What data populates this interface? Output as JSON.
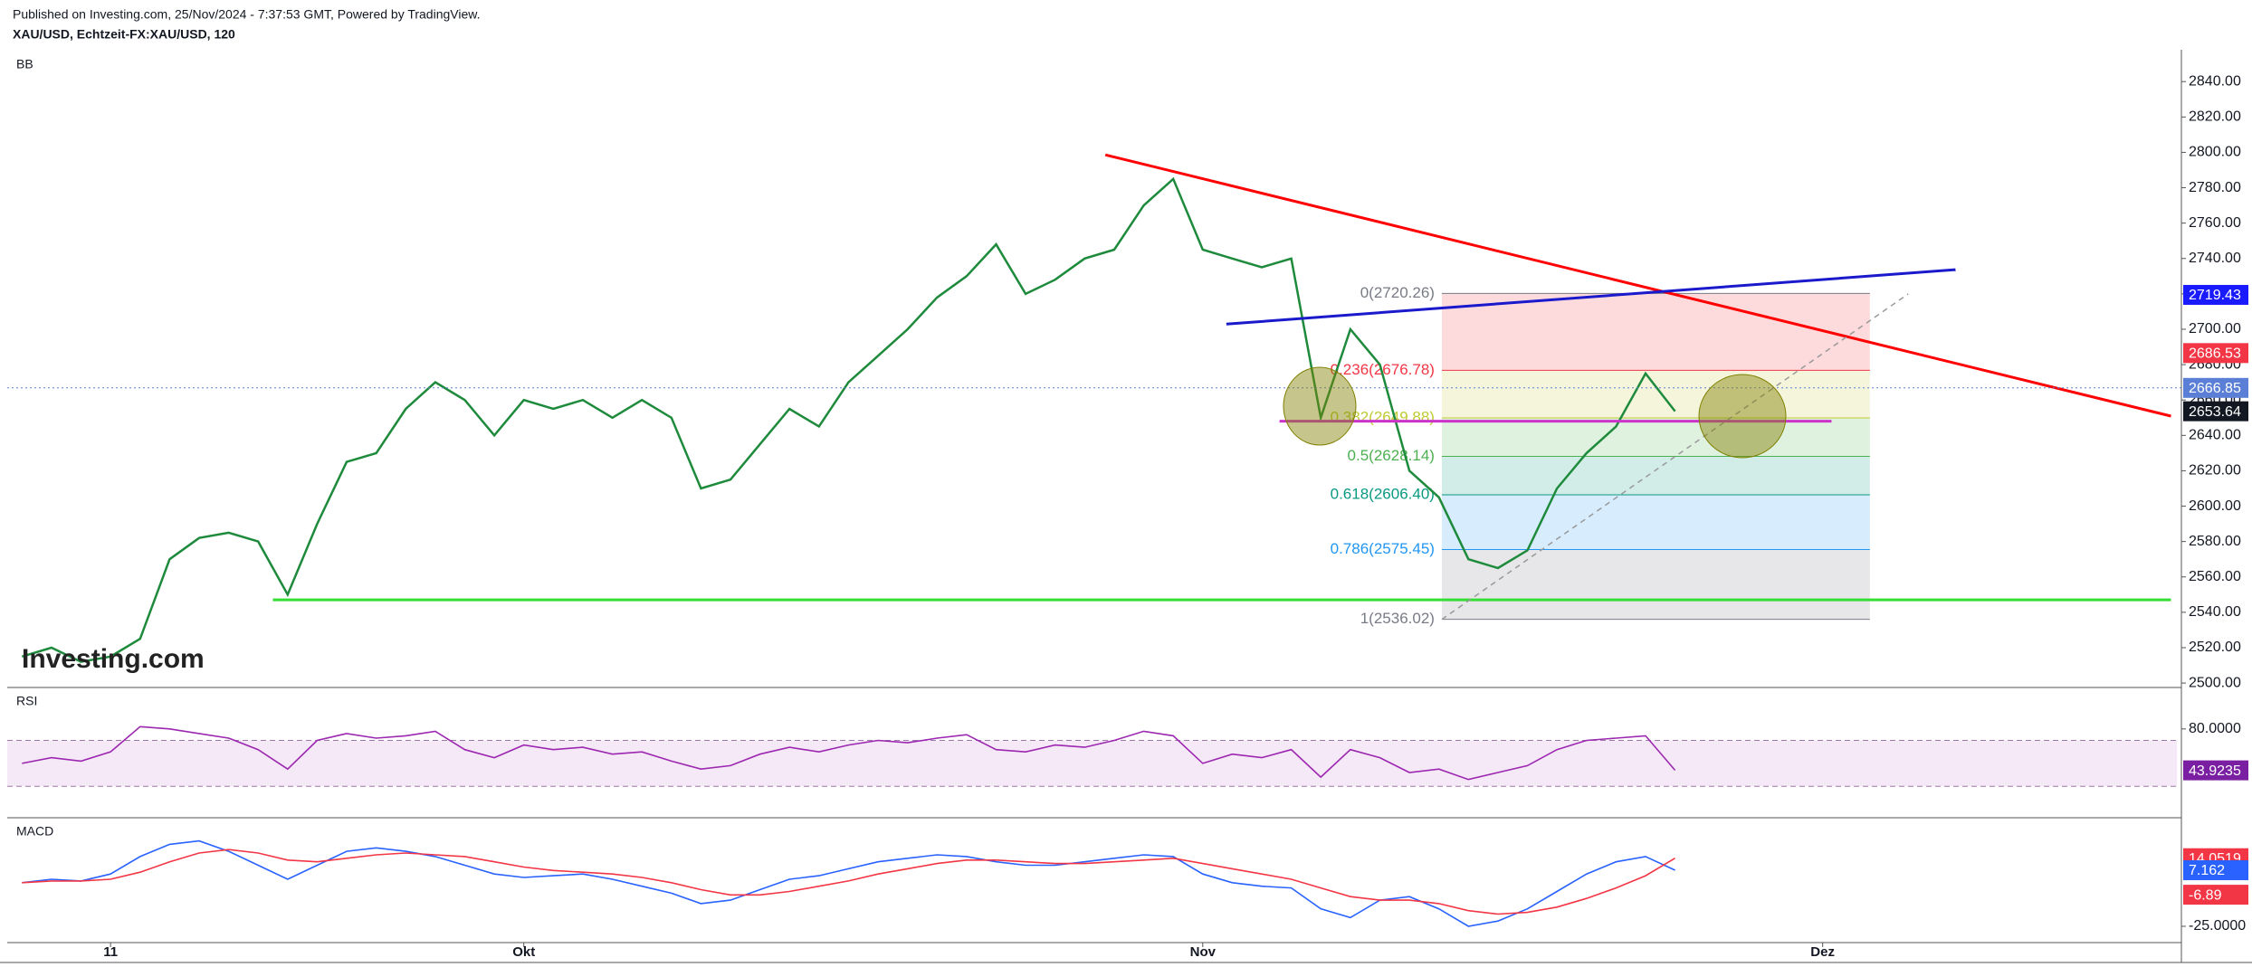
{
  "chart_data": [
    {
      "type": "line",
      "title": "XAU/USD, Echtzeit-FX:XAU/USD, 120",
      "subtitle": "Published on Investing.com, 25/Nov/2024 - 7:37:53 GMT, Powered by TradingView.",
      "indicator": "BB",
      "watermark": "Investing.com",
      "xlim": [
        -3.5,
        70
      ],
      "ylim": [
        2498,
        2858
      ],
      "yticks": [
        {
          "value": 2500,
          "label": "2500.00"
        },
        {
          "value": 2520,
          "label": "2520.00"
        },
        {
          "value": 2540,
          "label": "2540.00"
        },
        {
          "value": 2560,
          "label": "2560.00"
        },
        {
          "value": 2580,
          "label": "2580.00"
        },
        {
          "value": 2600,
          "label": "2600.00"
        },
        {
          "value": 2620,
          "label": "2620.00"
        },
        {
          "value": 2640,
          "label": "2640.00"
        },
        {
          "value": 2660,
          "label": "2660.00"
        },
        {
          "value": 2680,
          "label": "2680.00"
        },
        {
          "value": 2700,
          "label": "2700.00"
        },
        {
          "value": 2720,
          "label": "2720.00"
        },
        {
          "value": 2740,
          "label": "2740.00"
        },
        {
          "value": 2760,
          "label": "2760.00"
        },
        {
          "value": 2780,
          "label": "2780.00"
        },
        {
          "value": 2800,
          "label": "2800.00"
        },
        {
          "value": 2820,
          "label": "2820.00"
        },
        {
          "value": 2840,
          "label": "2840.00"
        }
      ],
      "x": [
        -3,
        -2,
        -1,
        0,
        1,
        2,
        3,
        4,
        5,
        6,
        7,
        8,
        9,
        10,
        11,
        12,
        13,
        14,
        15,
        16,
        17,
        18,
        19,
        20,
        21,
        22,
        23,
        24,
        25,
        26,
        27,
        28,
        29,
        30,
        31,
        32,
        33,
        34,
        35,
        36,
        37,
        38,
        39,
        40,
        41,
        42,
        43,
        44,
        45,
        46,
        47,
        48,
        49,
        50,
        51,
        52,
        53
      ],
      "series": [
        {
          "color": "#1e8a3c",
          "values": [
            2515,
            2520,
            2512,
            2515,
            2525,
            2570,
            2582,
            2585,
            2580,
            2550,
            2590,
            2625,
            2630,
            2655,
            2670,
            2660,
            2640,
            2660,
            2655,
            2660,
            2650,
            2660,
            2650,
            2610,
            2615,
            2635,
            2655,
            2645,
            2670,
            2685,
            2700,
            2718,
            2730,
            2748,
            2720,
            2728,
            2740,
            2745,
            2770,
            2785,
            2745,
            2740,
            2735,
            2740,
            2650,
            2700,
            2680,
            2620,
            2605,
            2570,
            2565,
            2575,
            2610,
            2630,
            2645,
            2675,
            2653.64
          ]
        }
      ],
      "fib_x": [
        45.1,
        59.6
      ],
      "fib_levels": [
        {
          "value": 2720.26,
          "label": "0(2720.26)"
        },
        {
          "value": 2676.78,
          "label": "0.236(2676.78)"
        },
        {
          "value": 2649.88,
          "label": "0.382(2649.88)"
        },
        {
          "value": 2628.14,
          "label": "0.5(2628.14)"
        },
        {
          "value": 2606.4,
          "label": "0.618(2606.40)"
        },
        {
          "value": 2575.45,
          "label": "0.786(2575.45)"
        },
        {
          "value": 2536.02,
          "label": "1(2536.02)"
        }
      ],
      "fib_colors": [
        "#787b86",
        "#f23645",
        "#c0ca33",
        "#4caf50",
        "#089981",
        "#2196f3",
        "#787b86"
      ],
      "lines": [
        {
          "x": [
            33.7,
            69.8
          ],
          "y": [
            2798.6,
            2650.9
          ],
          "color": "#ff0000"
        },
        {
          "x": [
            37.8,
            62.5
          ],
          "y": [
            2702.9,
            2733.7
          ],
          "color": "#1a1acc"
        },
        {
          "x": [
            5.5,
            69.8
          ],
          "y": [
            2547,
            2547
          ],
          "color": "#33dd33"
        },
        {
          "x": [
            39.6,
            58.3
          ],
          "y": [
            2648,
            2648
          ],
          "color": "#cc33cc"
        },
        {
          "x": [
            45.1,
            60.9
          ],
          "y": [
            2536,
            2720
          ],
          "color": "#999999",
          "dashed": true
        }
      ],
      "last_price": 2666.85,
      "tags": [
        {
          "value": 2719.43,
          "color": "#1a1aff"
        },
        {
          "value": 2686.53,
          "color": "#f23645"
        },
        {
          "value": 2666.85,
          "color": "#5b7fd6"
        },
        {
          "value": 2653.64,
          "color": "#131722"
        }
      ]
    },
    {
      "type": "line",
      "title": "RSI",
      "xlim": [
        -3.5,
        70
      ],
      "ylim": [
        5,
        113.75
      ],
      "bands": [
        30,
        70
      ],
      "yticks": [
        {
          "value": 80,
          "label": "80.0000"
        }
      ],
      "x": [
        -3,
        -2,
        -1,
        0,
        1,
        2,
        3,
        4,
        5,
        6,
        7,
        8,
        9,
        10,
        11,
        12,
        13,
        14,
        15,
        16,
        17,
        18,
        19,
        20,
        21,
        22,
        23,
        24,
        25,
        26,
        27,
        28,
        29,
        30,
        31,
        32,
        33,
        34,
        35,
        36,
        37,
        38,
        39,
        40,
        41,
        42,
        43,
        44,
        45,
        46,
        47,
        48,
        49,
        50,
        51,
        52,
        53
      ],
      "series": [
        {
          "color": "#9c27b0",
          "values": [
            50,
            55,
            52,
            60,
            82,
            80,
            76,
            72,
            62,
            45,
            70,
            76,
            72,
            74,
            78,
            62,
            55,
            66,
            62,
            64,
            58,
            60,
            52,
            45,
            48,
            58,
            64,
            60,
            66,
            70,
            68,
            72,
            75,
            62,
            60,
            66,
            64,
            70,
            78,
            74,
            50,
            58,
            55,
            62,
            38,
            62,
            55,
            42,
            45,
            36,
            42,
            48,
            62,
            70,
            72,
            74,
            44
          ]
        }
      ],
      "tags": [
        {
          "value": 43.9235,
          "color": "#7b1fa2"
        }
      ]
    },
    {
      "type": "line",
      "title": "MACD",
      "xlim": [
        -3.5,
        70
      ],
      "ylim": [
        -33.3,
        35.7
      ],
      "yticks": [
        {
          "value": -25,
          "label": "-25.0000"
        }
      ],
      "xticks": [
        {
          "value": 0,
          "label": "11"
        },
        {
          "value": 14,
          "label": "Okt"
        },
        {
          "value": 37,
          "label": "Nov"
        },
        {
          "value": 58,
          "label": "Dez"
        }
      ],
      "x": [
        -3,
        -2,
        -1,
        0,
        1,
        2,
        3,
        4,
        5,
        6,
        7,
        8,
        9,
        10,
        11,
        12,
        13,
        14,
        15,
        16,
        17,
        18,
        19,
        20,
        21,
        22,
        23,
        24,
        25,
        26,
        27,
        28,
        29,
        30,
        31,
        32,
        33,
        34,
        35,
        36,
        37,
        38,
        39,
        40,
        41,
        42,
        43,
        44,
        45,
        46,
        47,
        48,
        49,
        50,
        51,
        52,
        53
      ],
      "series": [
        {
          "color": "#2962ff",
          "values": [
            0,
            2,
            1,
            5,
            15,
            22,
            24,
            18,
            10,
            2,
            10,
            18,
            20,
            18,
            15,
            10,
            5,
            3,
            4,
            5,
            2,
            -2,
            -6,
            -12,
            -10,
            -4,
            2,
            4,
            8,
            12,
            14,
            16,
            15,
            12,
            10,
            10,
            12,
            14,
            16,
            15,
            5,
            0,
            -2,
            -3,
            -15,
            -20,
            -10,
            -8,
            -15,
            -25,
            -22,
            -15,
            -5,
            5,
            12,
            15,
            7.162
          ]
        },
        {
          "color": "#f23645",
          "values": [
            0,
            1,
            1,
            2,
            6,
            12,
            17,
            19,
            17,
            13,
            12,
            14,
            16,
            17,
            16,
            15,
            12,
            9,
            7,
            6,
            5,
            3,
            0,
            -4,
            -7,
            -7,
            -5,
            -2,
            1,
            5,
            8,
            11,
            13,
            13,
            12,
            11,
            11,
            12,
            13,
            14,
            11,
            8,
            5,
            2,
            -3,
            -8,
            -10,
            -10,
            -12,
            -16,
            -18,
            -17,
            -14,
            -9,
            -3,
            4,
            14.0519
          ]
        }
      ],
      "tags": [
        {
          "value": 14.0519,
          "color": "#f23645"
        },
        {
          "value": 7.162,
          "color": "#2962ff"
        },
        {
          "value": -6.89,
          "color": "#f23645"
        }
      ]
    }
  ]
}
